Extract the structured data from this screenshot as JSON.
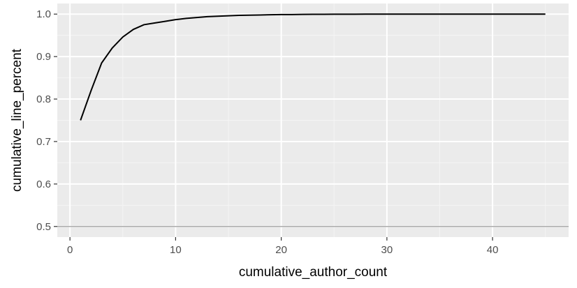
{
  "chart_data": {
    "type": "line",
    "xlabel": "cumulative_author_count",
    "ylabel": "cumulative_line_percent",
    "xlim": [
      -1.2,
      47.2
    ],
    "ylim": [
      0.475,
      1.025
    ],
    "x_ticks": [
      0,
      10,
      20,
      30,
      40
    ],
    "x_tick_labels": [
      "0",
      "10",
      "20",
      "30",
      "40"
    ],
    "y_ticks": [
      0.5,
      0.6,
      0.7,
      0.8,
      0.9,
      1.0
    ],
    "y_tick_labels": [
      "0.5",
      "0.6",
      "0.7",
      "0.8",
      "0.9",
      "1.0"
    ],
    "grid": true,
    "reference_line": {
      "y": 0.5,
      "color": "#aaaaaa"
    },
    "series": [
      {
        "x": [
          1,
          2,
          3,
          4,
          5,
          6,
          7,
          8,
          9,
          10,
          11,
          12,
          13,
          14,
          15,
          16,
          17,
          18,
          19,
          20,
          21,
          22,
          23,
          24,
          25,
          26,
          27,
          28,
          29,
          30,
          31,
          32,
          33,
          34,
          35,
          36,
          37,
          38,
          39,
          40,
          41,
          42,
          43,
          44,
          45
        ],
        "values": [
          0.75,
          0.82,
          0.885,
          0.92,
          0.946,
          0.964,
          0.975,
          0.979,
          0.983,
          0.987,
          0.99,
          0.992,
          0.994,
          0.995,
          0.996,
          0.997,
          0.9975,
          0.998,
          0.9985,
          0.999,
          0.999,
          0.9993,
          0.9995,
          0.9996,
          0.9997,
          0.9998,
          0.9998,
          0.9999,
          0.9999,
          1.0,
          1.0,
          1.0,
          1.0,
          1.0,
          1.0,
          1.0,
          1.0,
          1.0,
          1.0,
          1.0,
          1.0,
          1.0,
          1.0,
          1.0,
          1.0
        ],
        "color": "#000000"
      }
    ],
    "colors": {
      "panel": "#ebebeb",
      "grid_major": "#ffffff",
      "tick_text": "#4d4d4d"
    }
  }
}
